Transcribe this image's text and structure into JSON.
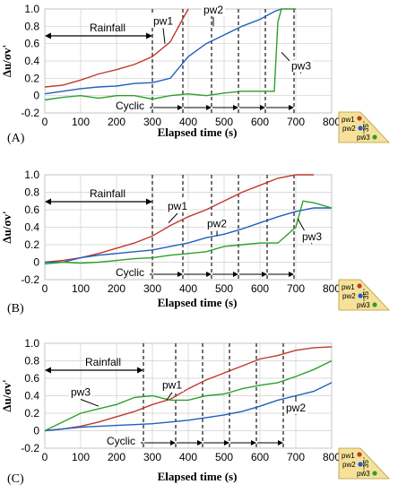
{
  "colors": {
    "pw1": "#c0392b",
    "pw2": "#1f5fbf",
    "pw3": "#2ca02c"
  },
  "legend": {
    "labels": [
      "pw1",
      "pw2",
      "pw3"
    ],
    "angle": "35"
  },
  "chart_data": [
    {
      "type": "line",
      "panel": "(A)",
      "xlabel": "Elapsed time (s)",
      "ylabel": "Δu/σv'",
      "xlim": [
        0,
        800
      ],
      "ylim": [
        -0.2,
        1.0
      ],
      "xticks": [
        0,
        100,
        200,
        300,
        400,
        500,
        600,
        700,
        800
      ],
      "yticks": [
        -0.2,
        0,
        0.2,
        0.4,
        0.6,
        0.8,
        1.0
      ],
      "grid": true,
      "vlines": [
        300,
        385,
        465,
        540,
        615,
        695
      ],
      "annotations": {
        "rainfall": "Rainfall",
        "cyclic": "Cyclic",
        "pw1": "pw1",
        "pw2": "pw2",
        "pw3": "pw3"
      },
      "series": [
        {
          "name": "pw1",
          "x": [
            0,
            50,
            100,
            150,
            200,
            250,
            300,
            350,
            380,
            400
          ],
          "y": [
            0.1,
            0.12,
            0.18,
            0.25,
            0.3,
            0.36,
            0.45,
            0.62,
            0.85,
            1.0
          ]
        },
        {
          "name": "pw2",
          "x": [
            0,
            50,
            100,
            150,
            200,
            250,
            300,
            350,
            400,
            450,
            500,
            550,
            600,
            640,
            660
          ],
          "y": [
            0.02,
            0.05,
            0.08,
            0.1,
            0.11,
            0.14,
            0.15,
            0.2,
            0.45,
            0.6,
            0.7,
            0.8,
            0.88,
            0.97,
            1.0
          ]
        },
        {
          "name": "pw3",
          "x": [
            0,
            50,
            100,
            150,
            200,
            250,
            300,
            350,
            400,
            450,
            500,
            550,
            600,
            640,
            650,
            660,
            700
          ],
          "y": [
            -0.05,
            -0.02,
            0.0,
            -0.03,
            0.0,
            0.0,
            -0.04,
            0.0,
            0.02,
            0.0,
            0.03,
            0.05,
            0.05,
            0.05,
            0.85,
            1.0,
            1.0
          ]
        }
      ]
    },
    {
      "type": "line",
      "panel": "(B)",
      "xlabel": "Elapsed time (s)",
      "ylabel": "Δu/σv'",
      "xlim": [
        0,
        800
      ],
      "ylim": [
        -0.2,
        1.0
      ],
      "xticks": [
        0,
        100,
        200,
        300,
        400,
        500,
        600,
        700,
        800
      ],
      "yticks": [
        -0.2,
        0,
        0.2,
        0.4,
        0.6,
        0.8,
        1.0
      ],
      "grid": true,
      "vlines": [
        300,
        385,
        465,
        540,
        620,
        695
      ],
      "annotations": {
        "rainfall": "Rainfall",
        "cyclic": "Cyclic",
        "pw1": "pw1",
        "pw2": "pw2",
        "pw3": "pw3"
      },
      "series": [
        {
          "name": "pw1",
          "x": [
            0,
            50,
            100,
            150,
            200,
            250,
            300,
            350,
            400,
            450,
            500,
            550,
            600,
            650,
            700,
            750
          ],
          "y": [
            0.0,
            0.02,
            0.05,
            0.1,
            0.16,
            0.22,
            0.3,
            0.42,
            0.52,
            0.6,
            0.7,
            0.8,
            0.88,
            0.96,
            1.0,
            1.0
          ]
        },
        {
          "name": "pw2",
          "x": [
            0,
            50,
            100,
            150,
            200,
            250,
            300,
            350,
            400,
            450,
            500,
            550,
            600,
            650,
            700,
            750,
            800
          ],
          "y": [
            0.0,
            0.0,
            0.05,
            0.08,
            0.1,
            0.12,
            0.14,
            0.18,
            0.22,
            0.28,
            0.32,
            0.38,
            0.45,
            0.52,
            0.58,
            0.62,
            0.62
          ]
        },
        {
          "name": "pw3",
          "x": [
            0,
            50,
            100,
            150,
            200,
            250,
            300,
            350,
            400,
            450,
            500,
            550,
            600,
            650,
            700,
            720,
            750,
            800
          ],
          "y": [
            -0.02,
            0.0,
            -0.01,
            0.0,
            0.02,
            0.04,
            0.05,
            0.08,
            0.1,
            0.12,
            0.18,
            0.2,
            0.22,
            0.22,
            0.4,
            0.7,
            0.68,
            0.62
          ]
        }
      ]
    },
    {
      "type": "line",
      "panel": "(C)",
      "xlabel": "Elapsed time (s)",
      "ylabel": "Δu/σv'",
      "xlim": [
        0,
        800
      ],
      "ylim": [
        -0.2,
        1.0
      ],
      "xticks": [
        0,
        100,
        200,
        300,
        400,
        500,
        600,
        700,
        800
      ],
      "yticks": [
        -0.2,
        0,
        0.2,
        0.4,
        0.6,
        0.8,
        1.0
      ],
      "grid": true,
      "vlines": [
        275,
        365,
        440,
        515,
        590,
        665
      ],
      "annotations": {
        "rainfall": "Rainfall",
        "cyclic": "Cyclic",
        "pw1": "pw1",
        "pw2": "pw2",
        "pw3": "pw3"
      },
      "series": [
        {
          "name": "pw1",
          "x": [
            0,
            50,
            100,
            150,
            200,
            250,
            300,
            350,
            400,
            450,
            500,
            550,
            600,
            650,
            700,
            750,
            800
          ],
          "y": [
            0.0,
            0.02,
            0.05,
            0.1,
            0.16,
            0.22,
            0.3,
            0.36,
            0.48,
            0.58,
            0.66,
            0.74,
            0.82,
            0.86,
            0.92,
            0.95,
            0.96
          ]
        },
        {
          "name": "pw2",
          "x": [
            0,
            50,
            100,
            150,
            200,
            250,
            300,
            350,
            400,
            450,
            500,
            550,
            600,
            650,
            700,
            750,
            800
          ],
          "y": [
            0.0,
            0.02,
            0.04,
            0.05,
            0.06,
            0.07,
            0.08,
            0.1,
            0.12,
            0.15,
            0.18,
            0.22,
            0.28,
            0.35,
            0.4,
            0.45,
            0.55
          ]
        },
        {
          "name": "pw3",
          "x": [
            0,
            50,
            100,
            150,
            200,
            250,
            300,
            350,
            400,
            450,
            500,
            550,
            600,
            650,
            700,
            750,
            800
          ],
          "y": [
            0.0,
            0.1,
            0.2,
            0.25,
            0.3,
            0.38,
            0.4,
            0.35,
            0.35,
            0.4,
            0.42,
            0.48,
            0.52,
            0.55,
            0.62,
            0.7,
            0.8
          ]
        }
      ]
    }
  ]
}
